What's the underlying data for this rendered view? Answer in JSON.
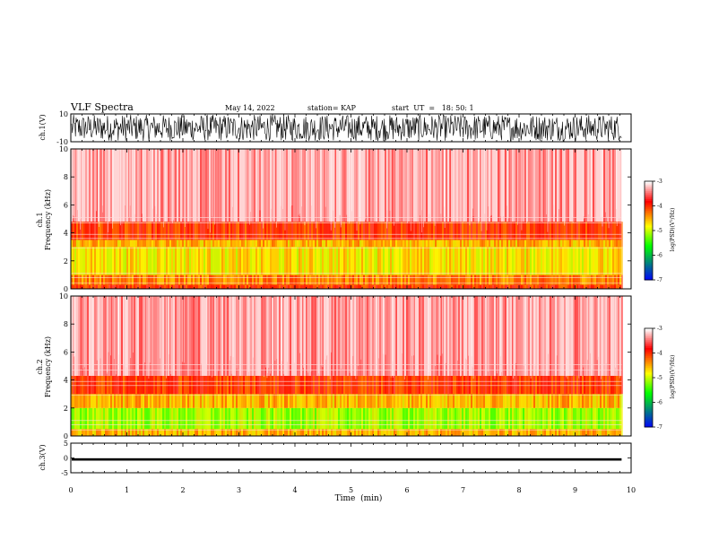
{
  "header": {
    "title": "VLF Spectra",
    "date": "May 14, 2022",
    "station": "station= KAP",
    "start": "start  UT  =   18: 50: 1"
  },
  "chart_data": [
    {
      "type": "line",
      "panel": "ch1-waveform",
      "ylabel": "ch.1(V)",
      "ylim": [
        -10,
        10
      ],
      "y_ticks": [
        "10",
        "-10"
      ],
      "xlim": [
        0,
        10
      ],
      "fill_color": "#000000"
    },
    {
      "type": "heatmap",
      "panel": "ch1-spectrogram",
      "ylabel": "ch.1\nFrequency (kHz)",
      "ylim": [
        0,
        10
      ],
      "y_ticks": [
        "0",
        "2",
        "4",
        "6",
        "8",
        "10"
      ],
      "xlim": [
        0,
        10
      ],
      "data_xmax": 9.83,
      "bands": [
        {
          "f_from": 0.0,
          "f_to": 0.3,
          "level": -4.0
        },
        {
          "f_from": 0.3,
          "f_to": 1.0,
          "level": -4.3
        },
        {
          "f_from": 1.0,
          "f_to": 3.0,
          "level": -4.7
        },
        {
          "f_from": 3.0,
          "f_to": 3.5,
          "level": -4.5
        },
        {
          "f_from": 3.5,
          "f_to": 4.8,
          "level": -4.0
        },
        {
          "f_from": 4.8,
          "f_to": 10.0,
          "level": -3.3
        }
      ],
      "colorbar": {
        "label": "log(PSD)(V²/Hz)",
        "ticks": [
          "-3",
          "-4",
          "-5",
          "-6",
          "-7"
        ],
        "range": [
          -7,
          -3
        ]
      }
    },
    {
      "type": "heatmap",
      "panel": "ch2-spectrogram",
      "ylabel": "ch.2\nFrequency (kHz)",
      "ylim": [
        0,
        10
      ],
      "y_ticks": [
        "0",
        "2",
        "4",
        "6",
        "8",
        "10"
      ],
      "xlim": [
        0,
        10
      ],
      "data_xmax": 9.83,
      "bands": [
        {
          "f_from": 0.0,
          "f_to": 0.5,
          "level": -4.5
        },
        {
          "f_from": 0.5,
          "f_to": 2.0,
          "level": -5.1
        },
        {
          "f_from": 2.0,
          "f_to": 3.0,
          "level": -4.5
        },
        {
          "f_from": 3.0,
          "f_to": 4.3,
          "level": -4.0
        },
        {
          "f_from": 4.3,
          "f_to": 10.0,
          "level": -3.3
        }
      ],
      "colorbar": {
        "label": "log(PSD)(V²/Hz)",
        "ticks": [
          "-3",
          "-4",
          "-5",
          "-6",
          "-7"
        ],
        "range": [
          -7,
          -3
        ]
      }
    },
    {
      "type": "line",
      "panel": "ch3-waveform",
      "ylabel": "ch.3(V)",
      "ylim": [
        -5,
        5
      ],
      "y_ticks": [
        "5",
        "0",
        "-5"
      ],
      "xlim": [
        0,
        10
      ],
      "level": -0.5,
      "amplitude": 0.4
    }
  ],
  "x_axis": {
    "label": "Time  (min)",
    "ticks": [
      "0",
      "1",
      "2",
      "3",
      "4",
      "5",
      "6",
      "7",
      "8",
      "9",
      "10"
    ]
  },
  "colors": {
    "high": "#ff0000",
    "mid": "#ffff00",
    "low": "#00ff00",
    "lower": "#0000ff",
    "axis": "#000000"
  }
}
